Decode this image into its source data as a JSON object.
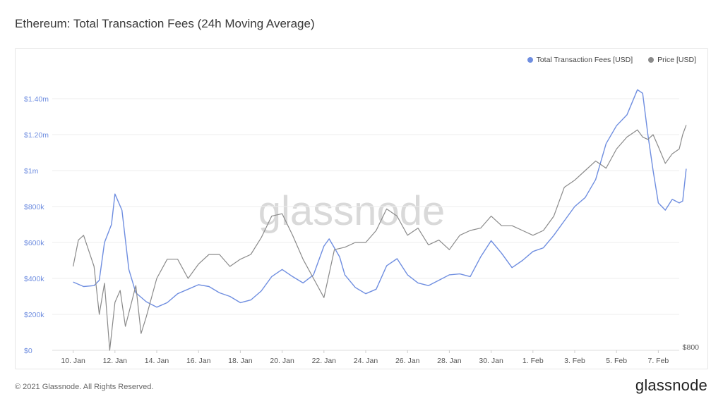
{
  "title": "Ethereum: Total Transaction Fees (24h Moving Average)",
  "footer": "© 2021 Glassnode. All Rights Reserved.",
  "brand": "glassnode",
  "watermark": "glassnode",
  "colors": {
    "fees": "#6f8ee0",
    "price": "#8a8a8a",
    "fees_axis": "#6f8ee0",
    "price_axis": "#555555",
    "grid": "#eeeeee"
  },
  "legend": [
    {
      "label": "Total Transaction Fees [USD]",
      "color": "#6f8ee0"
    },
    {
      "label": "Price [USD]",
      "color": "#8a8a8a"
    }
  ],
  "chart_data": {
    "type": "line",
    "title": "Ethereum: Total Transaction Fees (24h Moving Average)",
    "x_range": [
      "2021-01-09",
      "2021-02-08"
    ],
    "y_left": {
      "ticks": [
        0,
        200000,
        400000,
        600000,
        800000,
        1000000,
        1200000,
        1400000
      ],
      "tick_labels": [
        "$0",
        "$200k",
        "$400k",
        "$600k",
        "$800k",
        "$1m",
        "$1.20m",
        "$1.40m"
      ]
    },
    "y_right": {
      "visible_tick_label": "$800",
      "value": 800
    },
    "x_ticks": [
      {
        "label": "10. Jan",
        "date": "2021-01-10"
      },
      {
        "label": "12. Jan",
        "date": "2021-01-12"
      },
      {
        "label": "14. Jan",
        "date": "2021-01-14"
      },
      {
        "label": "16. Jan",
        "date": "2021-01-16"
      },
      {
        "label": "18. Jan",
        "date": "2021-01-18"
      },
      {
        "label": "20. Jan",
        "date": "2021-01-20"
      },
      {
        "label": "22. Jan",
        "date": "2021-01-22"
      },
      {
        "label": "24. Jan",
        "date": "2021-01-24"
      },
      {
        "label": "26. Jan",
        "date": "2021-01-26"
      },
      {
        "label": "28. Jan",
        "date": "2021-01-28"
      },
      {
        "label": "30. Jan",
        "date": "2021-01-30"
      },
      {
        "label": "1. Feb",
        "date": "2021-02-01"
      },
      {
        "label": "3. Feb",
        "date": "2021-02-03"
      },
      {
        "label": "5. Feb",
        "date": "2021-02-05"
      },
      {
        "label": "7. Feb",
        "date": "2021-02-07"
      }
    ],
    "series": [
      {
        "name": "Total Transaction Fees [USD]",
        "axis": "left",
        "points": [
          [
            "2021-01-10",
            380000
          ],
          [
            "2021-01-10T12:00",
            355000
          ],
          [
            "2021-01-11",
            360000
          ],
          [
            "2021-01-11T06:00",
            390000
          ],
          [
            "2021-01-11T12:00",
            600000
          ],
          [
            "2021-01-11T20:00",
            700000
          ],
          [
            "2021-01-12",
            870000
          ],
          [
            "2021-01-12T08:00",
            780000
          ],
          [
            "2021-01-12T16:00",
            450000
          ],
          [
            "2021-01-13",
            320000
          ],
          [
            "2021-01-13T12:00",
            270000
          ],
          [
            "2021-01-14",
            240000
          ],
          [
            "2021-01-14T12:00",
            265000
          ],
          [
            "2021-01-15",
            315000
          ],
          [
            "2021-01-15T12:00",
            340000
          ],
          [
            "2021-01-16",
            365000
          ],
          [
            "2021-01-16T12:00",
            355000
          ],
          [
            "2021-01-17",
            320000
          ],
          [
            "2021-01-17T12:00",
            300000
          ],
          [
            "2021-01-18",
            265000
          ],
          [
            "2021-01-18T12:00",
            280000
          ],
          [
            "2021-01-19",
            330000
          ],
          [
            "2021-01-19T12:00",
            410000
          ],
          [
            "2021-01-20",
            450000
          ],
          [
            "2021-01-20T12:00",
            410000
          ],
          [
            "2021-01-21",
            375000
          ],
          [
            "2021-01-21T12:00",
            420000
          ],
          [
            "2021-01-22",
            580000
          ],
          [
            "2021-01-22T06:00",
            620000
          ],
          [
            "2021-01-22T18:00",
            520000
          ],
          [
            "2021-01-23",
            420000
          ],
          [
            "2021-01-23T12:00",
            350000
          ],
          [
            "2021-01-24",
            315000
          ],
          [
            "2021-01-24T12:00",
            340000
          ],
          [
            "2021-01-25",
            470000
          ],
          [
            "2021-01-25T12:00",
            510000
          ],
          [
            "2021-01-26",
            420000
          ],
          [
            "2021-01-26T12:00",
            375000
          ],
          [
            "2021-01-27",
            360000
          ],
          [
            "2021-01-27T12:00",
            390000
          ],
          [
            "2021-01-28",
            420000
          ],
          [
            "2021-01-28T12:00",
            425000
          ],
          [
            "2021-01-29",
            410000
          ],
          [
            "2021-01-29T12:00",
            520000
          ],
          [
            "2021-01-30",
            610000
          ],
          [
            "2021-01-30T12:00",
            540000
          ],
          [
            "2021-01-31",
            460000
          ],
          [
            "2021-01-31T12:00",
            500000
          ],
          [
            "2021-02-01",
            550000
          ],
          [
            "2021-02-01T12:00",
            570000
          ],
          [
            "2021-02-02",
            640000
          ],
          [
            "2021-02-02T12:00",
            720000
          ],
          [
            "2021-02-03",
            800000
          ],
          [
            "2021-02-03T12:00",
            850000
          ],
          [
            "2021-02-04",
            950000
          ],
          [
            "2021-02-04T12:00",
            1150000
          ],
          [
            "2021-02-05",
            1250000
          ],
          [
            "2021-02-05T12:00",
            1310000
          ],
          [
            "2021-02-06",
            1450000
          ],
          [
            "2021-02-06T06:00",
            1430000
          ],
          [
            "2021-02-06T12:00",
            1200000
          ],
          [
            "2021-02-06T18:00",
            1000000
          ],
          [
            "2021-02-07",
            820000
          ],
          [
            "2021-02-07T08:00",
            780000
          ],
          [
            "2021-02-07T16:00",
            840000
          ],
          [
            "2021-02-08",
            820000
          ],
          [
            "2021-02-08T04:00",
            830000
          ],
          [
            "2021-02-08T08:00",
            1010000
          ]
        ]
      },
      {
        "name": "Price [USD]",
        "axis": "right",
        "points": [
          [
            "2021-01-10",
            1150
          ],
          [
            "2021-01-10T06:00",
            1260
          ],
          [
            "2021-01-10T12:00",
            1280
          ],
          [
            "2021-01-11",
            1150
          ],
          [
            "2021-01-11T06:00",
            950
          ],
          [
            "2021-01-11T12:00",
            1080
          ],
          [
            "2021-01-11T18:00",
            800
          ],
          [
            "2021-01-12",
            1000
          ],
          [
            "2021-01-12T06:00",
            1050
          ],
          [
            "2021-01-12T12:00",
            900
          ],
          [
            "2021-01-13",
            1070
          ],
          [
            "2021-01-13T06:00",
            870
          ],
          [
            "2021-01-13T12:00",
            940
          ],
          [
            "2021-01-14",
            1100
          ],
          [
            "2021-01-14T12:00",
            1180
          ],
          [
            "2021-01-15",
            1180
          ],
          [
            "2021-01-15T12:00",
            1100
          ],
          [
            "2021-01-16",
            1160
          ],
          [
            "2021-01-16T12:00",
            1200
          ],
          [
            "2021-01-17",
            1200
          ],
          [
            "2021-01-17T12:00",
            1150
          ],
          [
            "2021-01-18",
            1180
          ],
          [
            "2021-01-18T12:00",
            1200
          ],
          [
            "2021-01-19",
            1270
          ],
          [
            "2021-01-19T12:00",
            1360
          ],
          [
            "2021-01-20",
            1370
          ],
          [
            "2021-01-20T12:00",
            1280
          ],
          [
            "2021-01-21",
            1180
          ],
          [
            "2021-01-21T12:00",
            1100
          ],
          [
            "2021-01-22",
            1020
          ],
          [
            "2021-01-22T06:00",
            1120
          ],
          [
            "2021-01-22T12:00",
            1220
          ],
          [
            "2021-01-23",
            1230
          ],
          [
            "2021-01-23T12:00",
            1250
          ],
          [
            "2021-01-24",
            1250
          ],
          [
            "2021-01-24T12:00",
            1300
          ],
          [
            "2021-01-25",
            1390
          ],
          [
            "2021-01-25T12:00",
            1360
          ],
          [
            "2021-01-26",
            1280
          ],
          [
            "2021-01-26T12:00",
            1310
          ],
          [
            "2021-01-27",
            1240
          ],
          [
            "2021-01-27T12:00",
            1260
          ],
          [
            "2021-01-28",
            1220
          ],
          [
            "2021-01-28T12:00",
            1280
          ],
          [
            "2021-01-29",
            1300
          ],
          [
            "2021-01-29T12:00",
            1310
          ],
          [
            "2021-01-30",
            1360
          ],
          [
            "2021-01-30T12:00",
            1320
          ],
          [
            "2021-01-31",
            1320
          ],
          [
            "2021-01-31T12:00",
            1300
          ],
          [
            "2021-02-01",
            1280
          ],
          [
            "2021-02-01T12:00",
            1300
          ],
          [
            "2021-02-02",
            1360
          ],
          [
            "2021-02-02T12:00",
            1480
          ],
          [
            "2021-02-03",
            1510
          ],
          [
            "2021-02-03T12:00",
            1550
          ],
          [
            "2021-02-04",
            1590
          ],
          [
            "2021-02-04T12:00",
            1560
          ],
          [
            "2021-02-05",
            1640
          ],
          [
            "2021-02-05T12:00",
            1690
          ],
          [
            "2021-02-06",
            1720
          ],
          [
            "2021-02-06T06:00",
            1690
          ],
          [
            "2021-02-06T12:00",
            1680
          ],
          [
            "2021-02-06T18:00",
            1700
          ],
          [
            "2021-02-07",
            1650
          ],
          [
            "2021-02-07T08:00",
            1580
          ],
          [
            "2021-02-07T16:00",
            1620
          ],
          [
            "2021-02-08",
            1640
          ],
          [
            "2021-02-08T04:00",
            1700
          ],
          [
            "2021-02-08T08:00",
            1740
          ]
        ]
      }
    ]
  }
}
